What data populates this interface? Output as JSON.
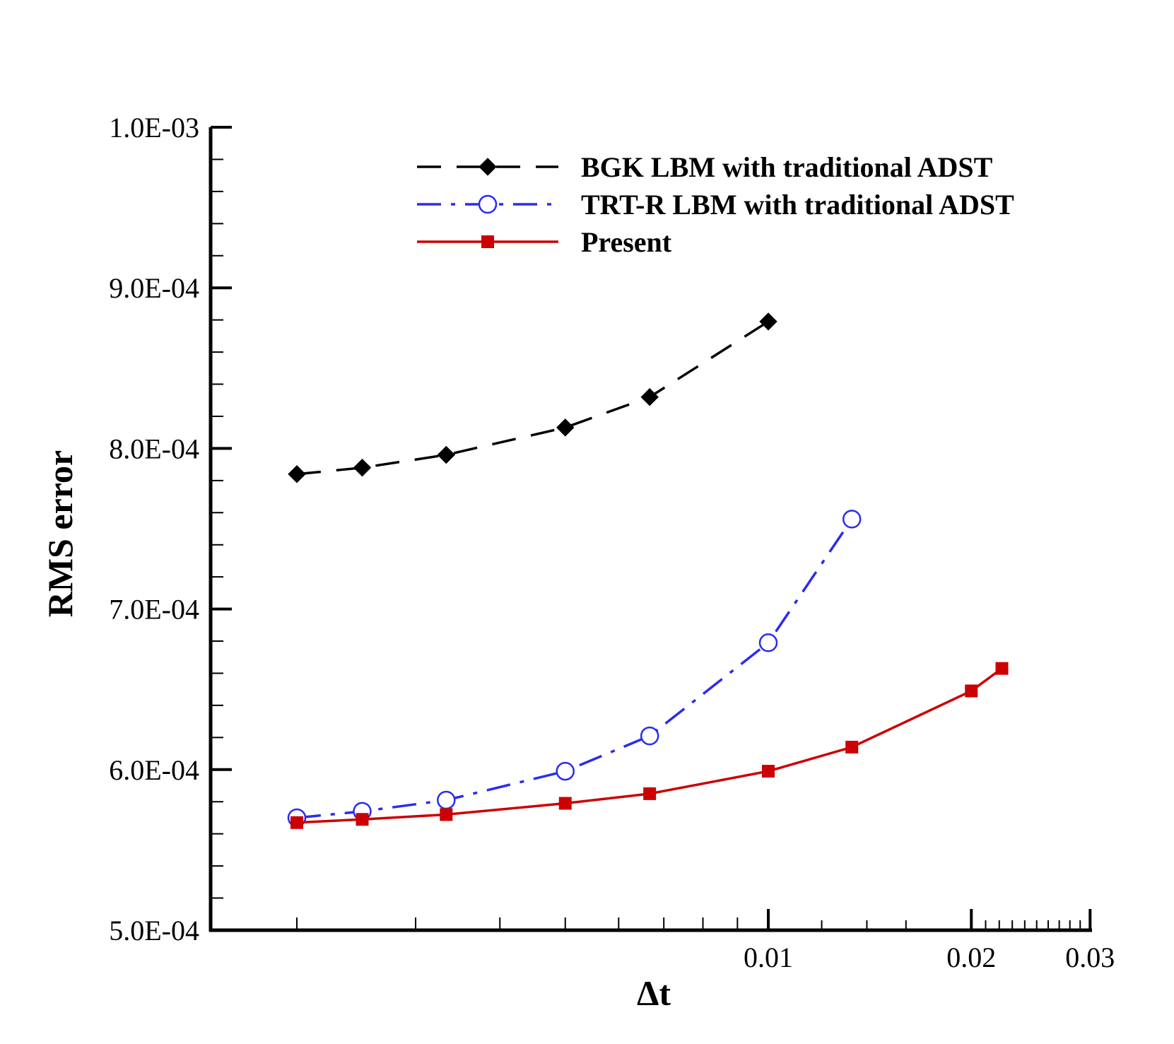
{
  "chart_data": {
    "type": "line",
    "title": "",
    "xlabel": "Δt",
    "ylabel": "RMS error",
    "x_scale": "log",
    "xlim": [
      0.0015,
      0.03
    ],
    "ylim": [
      0.0005,
      0.001
    ],
    "x_tick_labels": [
      {
        "value": 0.01,
        "label": "0.01"
      },
      {
        "value": 0.02,
        "label": "0.02"
      },
      {
        "value": 0.03,
        "label": "0.03"
      }
    ],
    "y_tick_labels": [
      {
        "value": 0.0005,
        "label": "5.0E-04"
      },
      {
        "value": 0.0006,
        "label": "6.0E-04"
      },
      {
        "value": 0.0007,
        "label": "7.0E-04"
      },
      {
        "value": 0.0008,
        "label": "8.0E-04"
      },
      {
        "value": 0.0009,
        "label": "9.0E-04"
      },
      {
        "value": 0.001,
        "label": "1.0E-03"
      }
    ],
    "grid": false,
    "legend_position": "top-right",
    "series": [
      {
        "name": "BGK LBM with traditional ADST",
        "color": "#000000",
        "line_style": "dashed",
        "marker": "diamond",
        "points": [
          {
            "x": 0.002,
            "y": 0.000784
          },
          {
            "x": 0.0025,
            "y": 0.000788
          },
          {
            "x": 0.00333,
            "y": 0.000796
          },
          {
            "x": 0.005,
            "y": 0.000813
          },
          {
            "x": 0.00667,
            "y": 0.000832
          },
          {
            "x": 0.01,
            "y": 0.000879
          }
        ]
      },
      {
        "name": "TRT-R LBM with traditional ADST",
        "color": "#2b2bee",
        "line_style": "dash-dot",
        "marker": "open-circle",
        "points": [
          {
            "x": 0.002,
            "y": 0.00057
          },
          {
            "x": 0.0025,
            "y": 0.000574
          },
          {
            "x": 0.00333,
            "y": 0.000581
          },
          {
            "x": 0.005,
            "y": 0.000599
          },
          {
            "x": 0.00667,
            "y": 0.000621
          },
          {
            "x": 0.01,
            "y": 0.000679
          },
          {
            "x": 0.0133,
            "y": 0.000756
          }
        ]
      },
      {
        "name": "Present",
        "color": "#cc0000",
        "line_style": "solid",
        "marker": "filled-square",
        "points": [
          {
            "x": 0.002,
            "y": 0.000567
          },
          {
            "x": 0.0025,
            "y": 0.000569
          },
          {
            "x": 0.00333,
            "y": 0.000572
          },
          {
            "x": 0.005,
            "y": 0.000579
          },
          {
            "x": 0.00667,
            "y": 0.000585
          },
          {
            "x": 0.01,
            "y": 0.000599
          },
          {
            "x": 0.0133,
            "y": 0.000614
          },
          {
            "x": 0.02,
            "y": 0.000649
          },
          {
            "x": 0.0222,
            "y": 0.000663
          }
        ]
      }
    ]
  }
}
